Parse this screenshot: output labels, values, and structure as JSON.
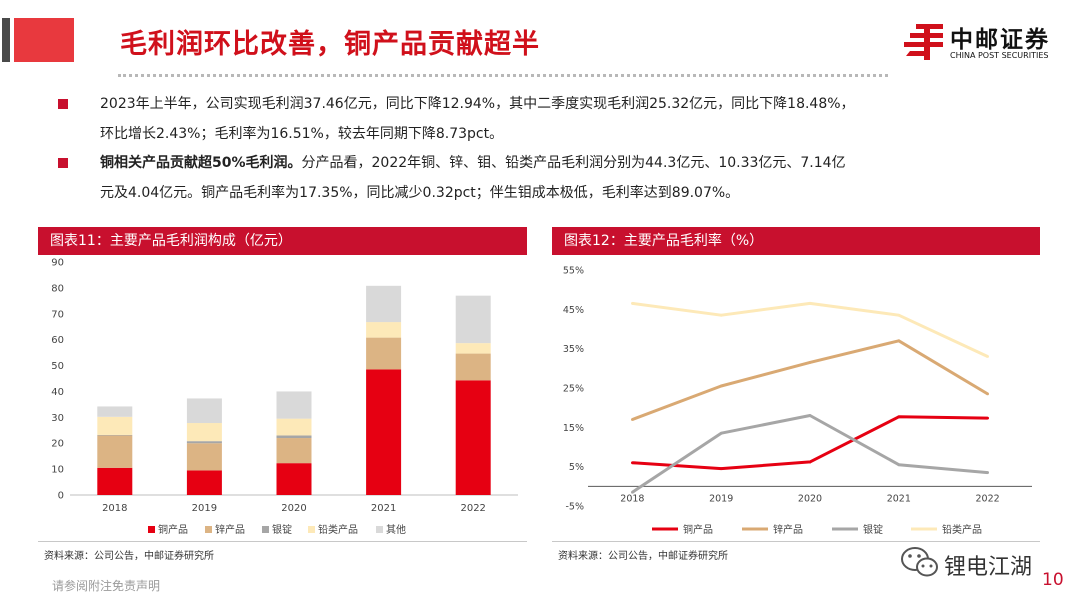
{
  "header": {
    "title": "毛利润环比改善，铜产品贡献超半",
    "logo_cn": "中邮证券",
    "logo_en": "CHINA POST SECURITIES",
    "colors": {
      "accent": "#c8102e",
      "deco_dark": "#4a4a4a",
      "deco_red": "#e8393e"
    }
  },
  "bullets": [
    {
      "lines": [
        "2023年上半年，公司实现毛利润37.46亿元，同比下降12.94%，其中二季度实现毛利润25.32亿元，同比下降18.48%，",
        "环比增长2.43%；毛利率为16.51%，较去年同期下降8.73pct。"
      ]
    },
    {
      "bold": "铜相关产品贡献超50%毛利润。",
      "lines": [
        "分产品看，2022年铜、锌、钼、铅类产品毛利润分别为44.3亿元、10.33亿元、7.14亿",
        "元及4.04亿元。铜产品毛利率为17.35%，同比减少0.32pct；伴生钼成本极低，毛利率达到89.07%。"
      ]
    }
  ],
  "footer": {
    "disclaimer": "请参阅附注免责声明",
    "watermark": "锂电江湖",
    "page_number": "10"
  },
  "chart_data": [
    {
      "type": "bar",
      "stacked": true,
      "title": "图表11：主要产品毛利润构成（亿元）",
      "source": "资料来源：公司公告，中邮证券研究所",
      "categories": [
        "2018",
        "2019",
        "2020",
        "2021",
        "2022"
      ],
      "ylim": [
        0,
        90
      ],
      "yticks": [
        0,
        10,
        20,
        30,
        40,
        50,
        60,
        70,
        80,
        90
      ],
      "legend_position": "bottom",
      "series": [
        {
          "name": "铜产品",
          "color": "#e60012",
          "values": [
            10.5,
            9.5,
            12.3,
            48.5,
            44.3
          ]
        },
        {
          "name": "锌产品",
          "color": "#dcb484",
          "values": [
            12.5,
            10.5,
            9.7,
            12.3,
            10.33
          ]
        },
        {
          "name": "银锭",
          "color": "#a6a6a6",
          "values": [
            0.2,
            0.8,
            1.0,
            0.0,
            0.0
          ]
        },
        {
          "name": "铅类产品",
          "color": "#fde9b8",
          "values": [
            7.0,
            7.0,
            6.5,
            6.0,
            4.04
          ]
        },
        {
          "name": "其他",
          "color": "#d9d9d9",
          "values": [
            4.0,
            9.5,
            10.5,
            14.0,
            18.33
          ]
        }
      ]
    },
    {
      "type": "line",
      "title": "图表12：主要产品毛利率（%）",
      "source": "资料来源：公司公告，中邮证券研究所",
      "categories": [
        "2018",
        "2019",
        "2020",
        "2021",
        "2022"
      ],
      "ylim": [
        -5,
        55
      ],
      "yticks": [
        -5,
        5,
        15,
        25,
        35,
        45,
        55
      ],
      "ytick_labels": [
        "-5%",
        "5%",
        "15%",
        "25%",
        "35%",
        "45%",
        "55%"
      ],
      "legend_position": "bottom",
      "series": [
        {
          "name": "铜产品",
          "color": "#e60012",
          "values": [
            6.0,
            4.5,
            6.2,
            17.67,
            17.35
          ]
        },
        {
          "name": "锌产品",
          "color": "#d9a973",
          "values": [
            17.0,
            25.5,
            31.5,
            37.0,
            23.5
          ]
        },
        {
          "name": "银锭",
          "color": "#a6a6a6",
          "values": [
            -1.5,
            13.5,
            18.0,
            5.5,
            3.5
          ]
        },
        {
          "name": "铅类产品",
          "color": "#fde9b8",
          "values": [
            46.5,
            43.5,
            46.5,
            43.5,
            33.0
          ]
        }
      ]
    }
  ]
}
